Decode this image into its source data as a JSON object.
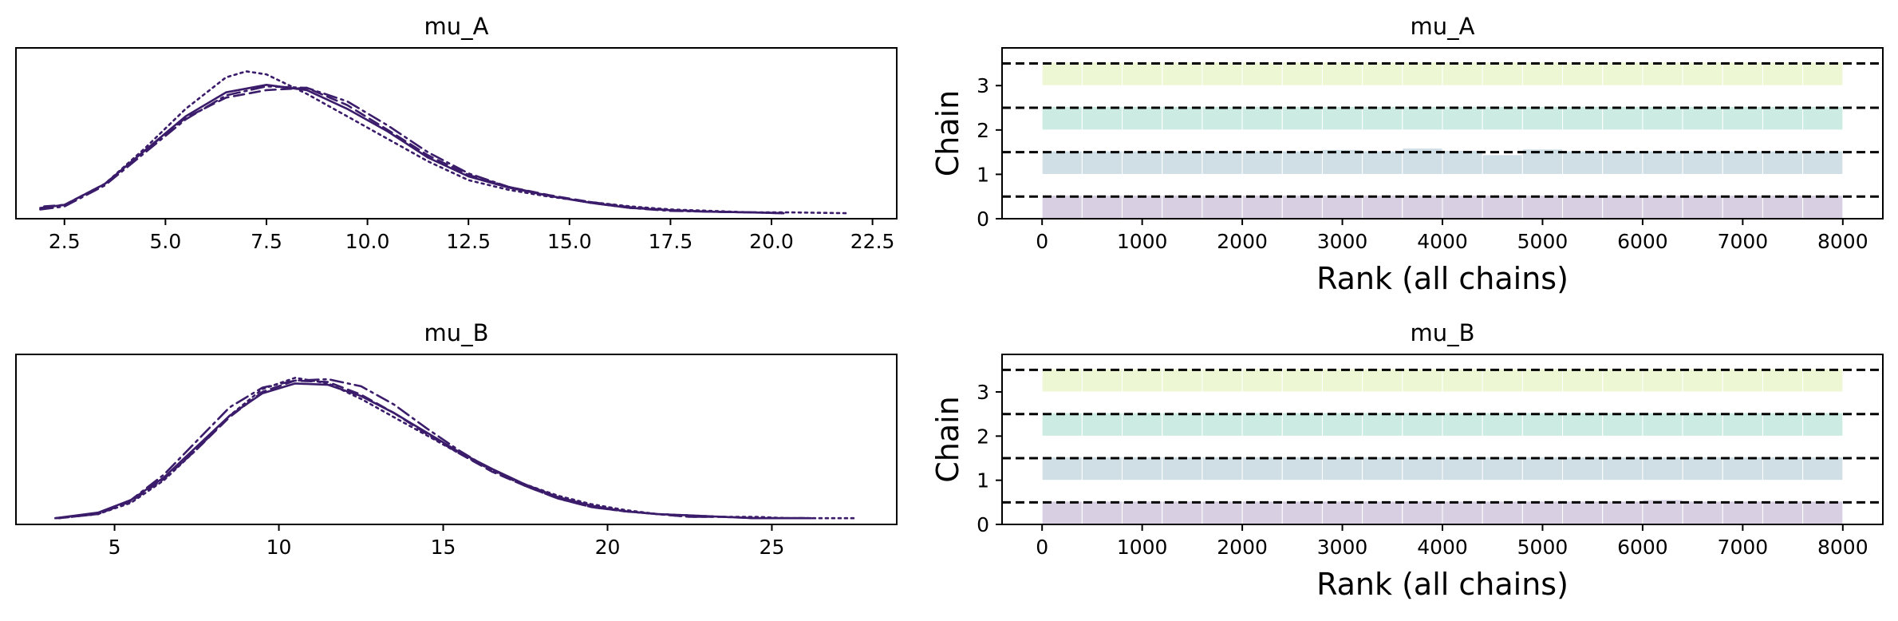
{
  "chart_data": [
    {
      "type": "line",
      "plot": "kde",
      "title": "mu_A",
      "xlabel": "",
      "ylabel": "",
      "xlim": [
        1.3,
        23.1
      ],
      "xticks": [
        2.5,
        5.0,
        7.5,
        10.0,
        12.5,
        15.0,
        17.5,
        20.0,
        22.5
      ],
      "xtick_labels": [
        "2.5",
        "5.0",
        "7.5",
        "10.0",
        "12.5",
        "15.0",
        "17.5",
        "20.0",
        "22.5"
      ],
      "show_yticks": false,
      "color": "#3b1c6b",
      "series": [
        {
          "linestyle": "solid",
          "x": [
            1.9,
            2.5,
            3.5,
            4.5,
            5.5,
            6.5,
            7.5,
            8.5,
            9.5,
            10.5,
            11.5,
            12.5,
            13.5,
            14.5,
            15.5,
            16.5,
            17.5,
            18.5,
            19.5,
            20.3
          ],
          "y": [
            0.008,
            0.012,
            0.04,
            0.085,
            0.13,
            0.162,
            0.172,
            0.165,
            0.14,
            0.11,
            0.075,
            0.05,
            0.035,
            0.024,
            0.015,
            0.008,
            0.005,
            0.003,
            0.002,
            0.001
          ]
        },
        {
          "linestyle": "dashed",
          "x": [
            2.0,
            2.5,
            3.5,
            4.5,
            5.5,
            6.5,
            7.5,
            8.5,
            9.5,
            10.5,
            11.5,
            12.5,
            13.5,
            14.5,
            15.5,
            16.5,
            17.5,
            18.5,
            19.5,
            20.3
          ],
          "y": [
            0.01,
            0.012,
            0.04,
            0.085,
            0.128,
            0.155,
            0.165,
            0.168,
            0.145,
            0.112,
            0.078,
            0.052,
            0.036,
            0.025,
            0.016,
            0.009,
            0.005,
            0.003,
            0.002,
            0.001
          ]
        },
        {
          "linestyle": "dashdot",
          "x": [
            1.9,
            2.5,
            3.5,
            4.5,
            5.5,
            6.5,
            7.5,
            8.5,
            9.5,
            10.5,
            11.5,
            12.5,
            13.5,
            14.5,
            15.5,
            16.5,
            17.5,
            18.5,
            19.5,
            20.3
          ],
          "y": [
            0.006,
            0.01,
            0.038,
            0.082,
            0.126,
            0.158,
            0.17,
            0.168,
            0.15,
            0.118,
            0.082,
            0.054,
            0.036,
            0.024,
            0.015,
            0.008,
            0.004,
            0.003,
            0.002,
            0.001
          ]
        },
        {
          "linestyle": "dotted",
          "x": [
            2.0,
            2.5,
            3.5,
            4.5,
            5.5,
            6.5,
            7.0,
            7.5,
            8.5,
            9.5,
            10.5,
            11.5,
            12.5,
            13.5,
            14.5,
            15.5,
            16.5,
            17.5,
            18.5,
            19.5,
            20.5,
            21.9
          ],
          "y": [
            0.008,
            0.012,
            0.04,
            0.088,
            0.14,
            0.182,
            0.19,
            0.186,
            0.16,
            0.13,
            0.1,
            0.07,
            0.045,
            0.032,
            0.023,
            0.016,
            0.01,
            0.006,
            0.004,
            0.002,
            0.002,
            0.001
          ]
        }
      ]
    },
    {
      "type": "bar",
      "plot": "rank",
      "title": "mu_A",
      "xlabel": "Rank (all chains)",
      "ylabel": "Chain",
      "xlim": [
        -400,
        8400
      ],
      "ylim": [
        0,
        3.85
      ],
      "xticks": [
        0,
        1000,
        2000,
        3000,
        4000,
        5000,
        6000,
        7000,
        8000
      ],
      "xtick_labels": [
        "0",
        "1000",
        "2000",
        "3000",
        "4000",
        "5000",
        "6000",
        "7000",
        "8000"
      ],
      "yticks": [
        0,
        1,
        2,
        3
      ],
      "ytick_labels": [
        "0",
        "1",
        "2",
        "3"
      ],
      "bin_width": 400,
      "reference_lines": [
        0.5,
        1.5,
        2.5,
        3.5
      ],
      "chains": [
        {
          "color": "#d8d0e2",
          "values": [
            1.0,
            1.0,
            1.0,
            1.0,
            1.0,
            1.0,
            1.0,
            1.0,
            1.0,
            1.0,
            1.0,
            1.0,
            1.0,
            1.0,
            1.0,
            1.0,
            1.0,
            1.0,
            1.0,
            1.0
          ]
        },
        {
          "color": "#d0dee6",
          "values": [
            1.0,
            1.0,
            1.0,
            1.0,
            1.0,
            1.0,
            1.0,
            1.06,
            1.0,
            1.12,
            1.02,
            0.84,
            1.08,
            1.0,
            1.0,
            1.0,
            1.0,
            1.0,
            1.0,
            1.0
          ]
        },
        {
          "color": "#ccebe2",
          "values": [
            1.0,
            1.0,
            1.0,
            1.0,
            1.0,
            1.0,
            1.0,
            1.0,
            1.0,
            1.0,
            1.0,
            1.0,
            1.0,
            1.0,
            1.0,
            1.0,
            1.0,
            1.0,
            1.0,
            1.0
          ]
        },
        {
          "color": "#edf7d4",
          "values": [
            1.0,
            1.0,
            1.0,
            1.0,
            1.0,
            1.0,
            1.0,
            1.0,
            1.0,
            1.0,
            1.0,
            1.0,
            1.0,
            1.0,
            1.0,
            1.0,
            1.0,
            1.0,
            1.0,
            1.0
          ]
        }
      ]
    },
    {
      "type": "line",
      "plot": "kde",
      "title": "mu_B",
      "xlabel": "",
      "ylabel": "",
      "xlim": [
        2.0,
        28.8
      ],
      "xticks": [
        5,
        10,
        15,
        20,
        25
      ],
      "xtick_labels": [
        "5",
        "10",
        "15",
        "20",
        "25"
      ],
      "show_yticks": false,
      "color": "#3b1c6b",
      "series": [
        {
          "linestyle": "solid",
          "x": [
            3.2,
            4.5,
            5.5,
            6.5,
            7.5,
            8.5,
            9.5,
            10.5,
            11.5,
            12.5,
            13.5,
            14.5,
            15.5,
            16.5,
            17.5,
            18.5,
            19.5,
            20.5,
            21.5,
            22.5,
            23.5,
            24.5,
            25.5,
            26.2
          ],
          "y": [
            0.001,
            0.005,
            0.014,
            0.03,
            0.052,
            0.074,
            0.09,
            0.097,
            0.096,
            0.088,
            0.076,
            0.062,
            0.048,
            0.036,
            0.025,
            0.016,
            0.01,
            0.006,
            0.004,
            0.003,
            0.002,
            0.001,
            0.001,
            0.001
          ]
        },
        {
          "linestyle": "dashed",
          "x": [
            3.3,
            4.5,
            5.5,
            6.5,
            7.5,
            8.5,
            9.5,
            10.5,
            11.5,
            12.5,
            13.5,
            14.5,
            15.5,
            16.5,
            17.5,
            18.5,
            19.5,
            20.5,
            21.5,
            22.5,
            23.5,
            24.5,
            25.5,
            26.0
          ],
          "y": [
            0.001,
            0.004,
            0.013,
            0.029,
            0.05,
            0.073,
            0.091,
            0.099,
            0.098,
            0.089,
            0.076,
            0.061,
            0.047,
            0.034,
            0.024,
            0.015,
            0.009,
            0.006,
            0.004,
            0.002,
            0.002,
            0.001,
            0.001,
            0.001
          ]
        },
        {
          "linestyle": "dashdot",
          "x": [
            3.2,
            4.5,
            5.5,
            6.5,
            7.5,
            8.5,
            9.5,
            10.5,
            11.5,
            12.5,
            13.5,
            14.5,
            15.5,
            16.5,
            17.5,
            18.5,
            19.5,
            20.5,
            21.5,
            22.5,
            23.5,
            24.5,
            25.5,
            26.0
          ],
          "y": [
            0.001,
            0.004,
            0.014,
            0.032,
            0.056,
            0.08,
            0.094,
            0.099,
            0.1,
            0.095,
            0.082,
            0.065,
            0.049,
            0.035,
            0.024,
            0.015,
            0.009,
            0.006,
            0.004,
            0.002,
            0.002,
            0.001,
            0.001,
            0.001
          ]
        },
        {
          "linestyle": "dotted",
          "x": [
            3.3,
            4.5,
            5.5,
            6.5,
            7.5,
            8.5,
            9.5,
            10.5,
            11.5,
            12.5,
            13.5,
            14.5,
            15.5,
            16.5,
            17.5,
            18.5,
            19.5,
            20.5,
            21.5,
            22.5,
            23.5,
            24.5,
            25.5,
            26.5,
            27.6
          ],
          "y": [
            0.001,
            0.004,
            0.012,
            0.028,
            0.05,
            0.074,
            0.093,
            0.101,
            0.097,
            0.086,
            0.073,
            0.06,
            0.047,
            0.035,
            0.025,
            0.017,
            0.011,
            0.007,
            0.004,
            0.003,
            0.002,
            0.002,
            0.001,
            0.001,
            0.001
          ]
        }
      ]
    },
    {
      "type": "bar",
      "plot": "rank",
      "title": "mu_B",
      "xlabel": "Rank (all chains)",
      "ylabel": "Chain",
      "xlim": [
        -400,
        8400
      ],
      "ylim": [
        0,
        3.85
      ],
      "xticks": [
        0,
        1000,
        2000,
        3000,
        4000,
        5000,
        6000,
        7000,
        8000
      ],
      "xtick_labels": [
        "0",
        "1000",
        "2000",
        "3000",
        "4000",
        "5000",
        "6000",
        "7000",
        "8000"
      ],
      "yticks": [
        0,
        1,
        2,
        3
      ],
      "ytick_labels": [
        "0",
        "1",
        "2",
        "3"
      ],
      "bin_width": 400,
      "reference_lines": [
        0.5,
        1.5,
        2.5,
        3.5
      ],
      "chains": [
        {
          "color": "#d8d0e2",
          "values": [
            1.0,
            1.0,
            1.0,
            1.0,
            1.0,
            1.0,
            1.0,
            1.0,
            1.0,
            1.0,
            1.0,
            1.0,
            1.0,
            1.0,
            1.0,
            1.06,
            1.0,
            1.0,
            1.0,
            1.0
          ]
        },
        {
          "color": "#d0dee6",
          "values": [
            1.0,
            1.0,
            1.0,
            1.0,
            1.0,
            1.0,
            1.0,
            1.0,
            1.0,
            1.0,
            1.0,
            1.0,
            1.0,
            1.0,
            1.0,
            1.0,
            1.0,
            1.0,
            1.0,
            1.0
          ]
        },
        {
          "color": "#ccebe2",
          "values": [
            1.0,
            1.0,
            1.0,
            1.0,
            1.0,
            1.0,
            1.0,
            1.0,
            1.0,
            1.0,
            1.0,
            1.0,
            1.0,
            1.0,
            1.0,
            1.0,
            1.0,
            1.0,
            1.0,
            1.0
          ]
        },
        {
          "color": "#edf7d4",
          "values": [
            1.0,
            1.0,
            1.0,
            1.0,
            1.0,
            1.0,
            1.0,
            1.0,
            1.0,
            1.0,
            1.0,
            1.0,
            1.0,
            1.0,
            1.0,
            1.0,
            1.0,
            1.0,
            1.0,
            1.0
          ]
        }
      ]
    }
  ]
}
